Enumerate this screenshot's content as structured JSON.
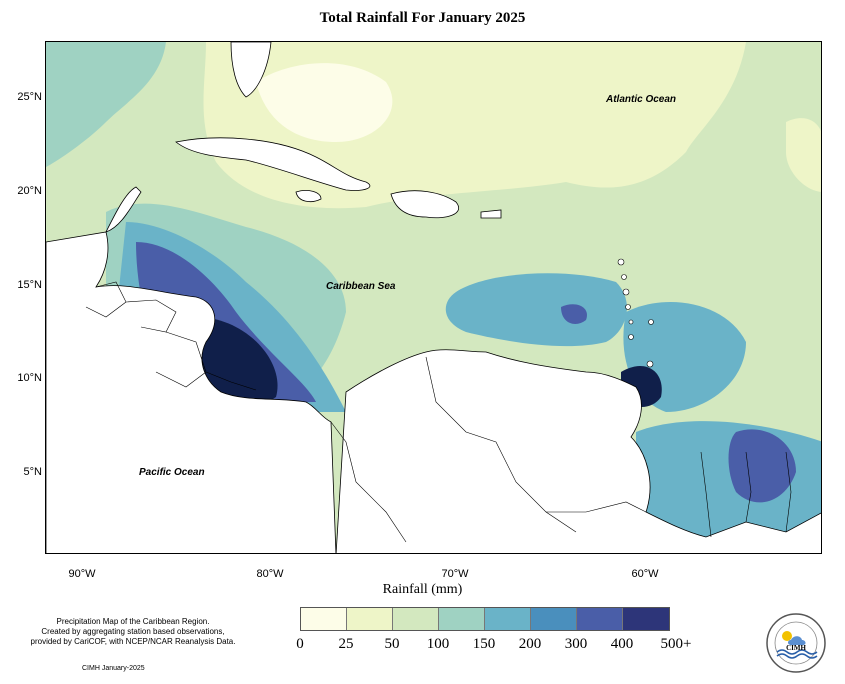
{
  "title": "Total Rainfall For January 2025",
  "x_axis_title": "Rainfall (mm)",
  "lat_labels": [
    "25°N",
    "20°N",
    "15°N",
    "10°N",
    "5°N"
  ],
  "lon_labels": [
    "90°W",
    "80°W",
    "70°W",
    "60°W"
  ],
  "oceans": {
    "atlantic": "Atlantic Ocean",
    "caribbean": "Caribbean Sea",
    "pacific": "Pacific Ocean"
  },
  "legend": {
    "ticks": [
      "0",
      "25",
      "50",
      "100",
      "150",
      "200",
      "300",
      "400",
      "500+"
    ],
    "colors": [
      "#fdfde8",
      "#eef5c8",
      "#d3e8bf",
      "#9fd2c2",
      "#6ab3c8",
      "#4a8fbd",
      "#4a5ea8",
      "#2d3579",
      "#101f4a"
    ]
  },
  "notes": {
    "line1": "Precipitation Map of the Caribbean Region.",
    "line2": "Created by aggregating station based observations,",
    "line3": "provided by CariCOF, with NCEP/NCAR Reanalysis Data.",
    "footer": "CIMH January-2025"
  },
  "logo": {
    "acronym": "CIMH",
    "icon": "sun-cloud-waves-logo"
  },
  "map_style": {
    "land": "#ffffff",
    "outline": "#000000"
  }
}
